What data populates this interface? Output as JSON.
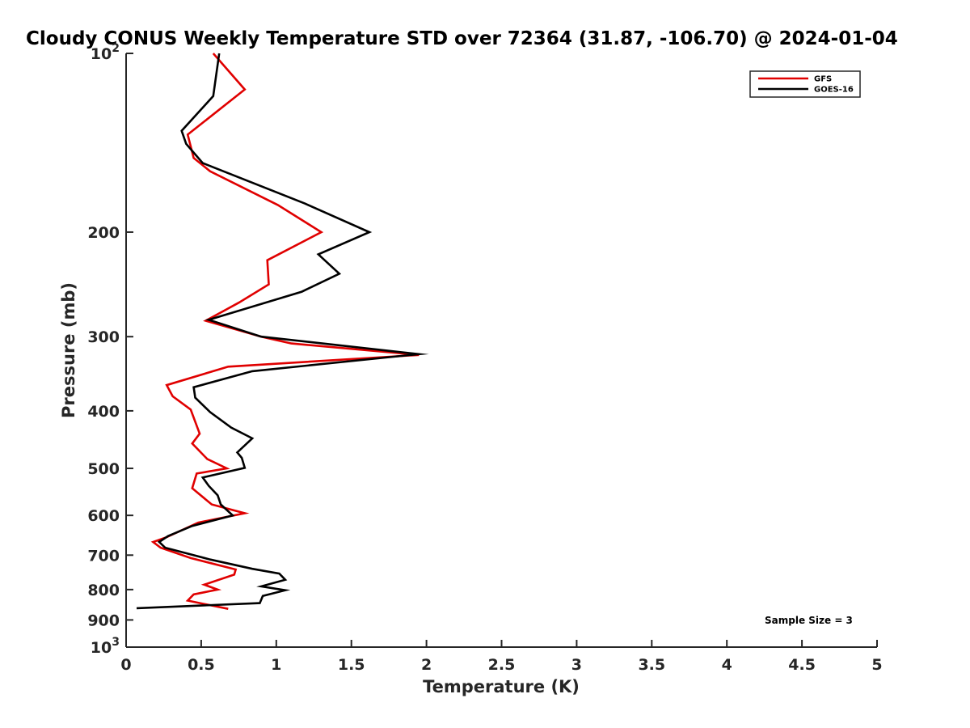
{
  "chart_data": {
    "type": "line",
    "title": "Cloudy CONUS Weekly Temperature STD over 72364 (31.87, -106.70) @ 2024-01-04",
    "xlabel": "Temperature (K)",
    "ylabel": "Pressure (mb)",
    "xlim": [
      0,
      5
    ],
    "ylim": [
      1000,
      100
    ],
    "yscale": "log",
    "y_reversed": true,
    "grid": false,
    "legend_position": "top-right",
    "x_ticks": [
      "0",
      "0.5",
      "1",
      "1.5",
      "2",
      "2.5",
      "3",
      "3.5",
      "4",
      "4.5",
      "5"
    ],
    "y_ticks": [
      {
        "value": 100,
        "base": "10",
        "exp": "2"
      },
      {
        "value": 200,
        "label": "200"
      },
      {
        "value": 300,
        "label": "300"
      },
      {
        "value": 400,
        "label": "400"
      },
      {
        "value": 500,
        "label": "500"
      },
      {
        "value": 600,
        "label": "600"
      },
      {
        "value": 700,
        "label": "700"
      },
      {
        "value": 800,
        "label": "800"
      },
      {
        "value": 900,
        "label": "900"
      },
      {
        "value": 1000,
        "base": "10",
        "exp": "3"
      }
    ],
    "annotation": "Sample Size = 3",
    "series": [
      {
        "name": "GFS",
        "color": "#e00000",
        "points": [
          [
            0.58,
            100
          ],
          [
            0.79,
            115
          ],
          [
            0.41,
            137
          ],
          [
            0.45,
            150
          ],
          [
            0.56,
            158
          ],
          [
            1.01,
            180
          ],
          [
            1.3,
            200
          ],
          [
            0.94,
            223
          ],
          [
            0.95,
            245
          ],
          [
            0.75,
            263
          ],
          [
            0.53,
            282
          ],
          [
            0.9,
            300
          ],
          [
            1.1,
            308
          ],
          [
            1.95,
            322
          ],
          [
            0.68,
            337
          ],
          [
            0.27,
            362
          ],
          [
            0.31,
            378
          ],
          [
            0.43,
            398
          ],
          [
            0.49,
            437
          ],
          [
            0.44,
            454
          ],
          [
            0.54,
            482
          ],
          [
            0.67,
            500
          ],
          [
            0.47,
            510
          ],
          [
            0.44,
            540
          ],
          [
            0.57,
            575
          ],
          [
            0.79,
            595
          ],
          [
            0.48,
            617
          ],
          [
            0.27,
            653
          ],
          [
            0.18,
            665
          ],
          [
            0.23,
            680
          ],
          [
            0.43,
            708
          ],
          [
            0.73,
            740
          ],
          [
            0.72,
            755
          ],
          [
            0.52,
            785
          ],
          [
            0.61,
            800
          ],
          [
            0.45,
            815
          ],
          [
            0.41,
            835
          ],
          [
            0.68,
            862
          ]
        ]
      },
      {
        "name": "GOES-16",
        "color": "#000000",
        "points": [
          [
            0.62,
            100
          ],
          [
            0.58,
            118
          ],
          [
            0.37,
            135
          ],
          [
            0.4,
            142
          ],
          [
            0.51,
            153
          ],
          [
            1.19,
            179
          ],
          [
            1.62,
            200
          ],
          [
            1.28,
            218
          ],
          [
            1.42,
            235
          ],
          [
            1.17,
            252
          ],
          [
            0.55,
            281
          ],
          [
            0.9,
            300
          ],
          [
            1.95,
            321
          ],
          [
            0.84,
            343
          ],
          [
            0.45,
            365
          ],
          [
            0.46,
            380
          ],
          [
            0.56,
            402
          ],
          [
            0.7,
            427
          ],
          [
            0.84,
            445
          ],
          [
            0.74,
            470
          ],
          [
            0.77,
            480
          ],
          [
            0.79,
            499
          ],
          [
            0.51,
            518
          ],
          [
            0.55,
            535
          ],
          [
            0.61,
            555
          ],
          [
            0.63,
            575
          ],
          [
            0.71,
            600
          ],
          [
            0.44,
            625
          ],
          [
            0.28,
            650
          ],
          [
            0.22,
            665
          ],
          [
            0.26,
            680
          ],
          [
            0.56,
            712
          ],
          [
            0.84,
            738
          ],
          [
            1.02,
            752
          ],
          [
            1.06,
            770
          ],
          [
            0.9,
            790
          ],
          [
            1.06,
            802
          ],
          [
            0.91,
            820
          ],
          [
            0.89,
            843
          ],
          [
            0.07,
            860
          ]
        ]
      }
    ]
  }
}
